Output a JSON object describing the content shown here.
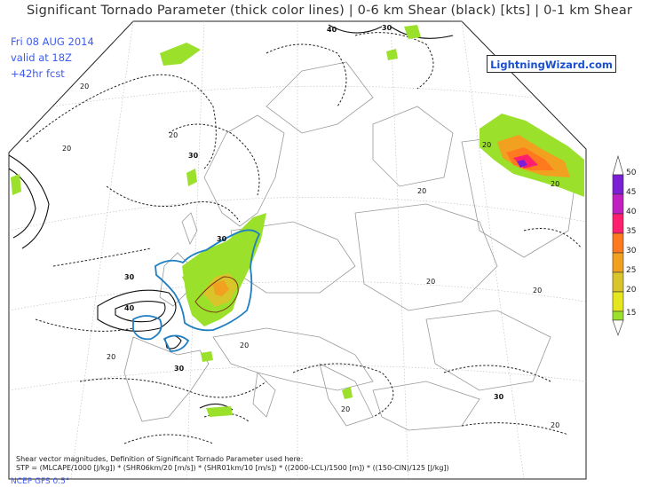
{
  "header": {
    "title": "Significant Tornado Parameter (thick color lines) | 0-6 km Shear (black) [kts] | 0-1 km Shear",
    "date": "Fri 08 AUG 2014",
    "valid": "valid at 18Z",
    "forecast": "+42hr fcst",
    "brand": "LightningWizard.com"
  },
  "colorbar": {
    "levels": [
      "50",
      "45",
      "40",
      "35",
      "30",
      "25",
      "20",
      "15"
    ],
    "colors": [
      "#7a1fd6",
      "#c21fc2",
      "#ff1f6e",
      "#ff7a1f",
      "#f2a020",
      "#d9c52a",
      "#e6e61f",
      "#9be02a"
    ]
  },
  "contour_labels": {
    "top_center": "40",
    "top_right": "30",
    "left_1": "20",
    "left_2": "20",
    "left_3": "20",
    "uk_1": "30",
    "uk_2": "30",
    "atl_1": "30",
    "atl_2": "40",
    "iberia": "20",
    "south_1": "30",
    "med_1": "20",
    "east_1": "20",
    "east_2": "20",
    "east_3": "20",
    "east_4": "30",
    "east_5": "20",
    "east_6": "20",
    "russia_1": "20",
    "russia_2": "20"
  },
  "footer": {
    "line1": "Shear vector magnitudes, Definition of Significant Tornado Parameter used here:",
    "line2": "STP = (MLCAPE/1000 [J/kg]) * (SHR06km/20 [m/s]) * (SHR01km/10 [m/s]) * ((2000-LCL)/1500 [m]) * ((150-CIN)/125 [J/kg])",
    "model": "NCEP GFS 0.5°"
  }
}
